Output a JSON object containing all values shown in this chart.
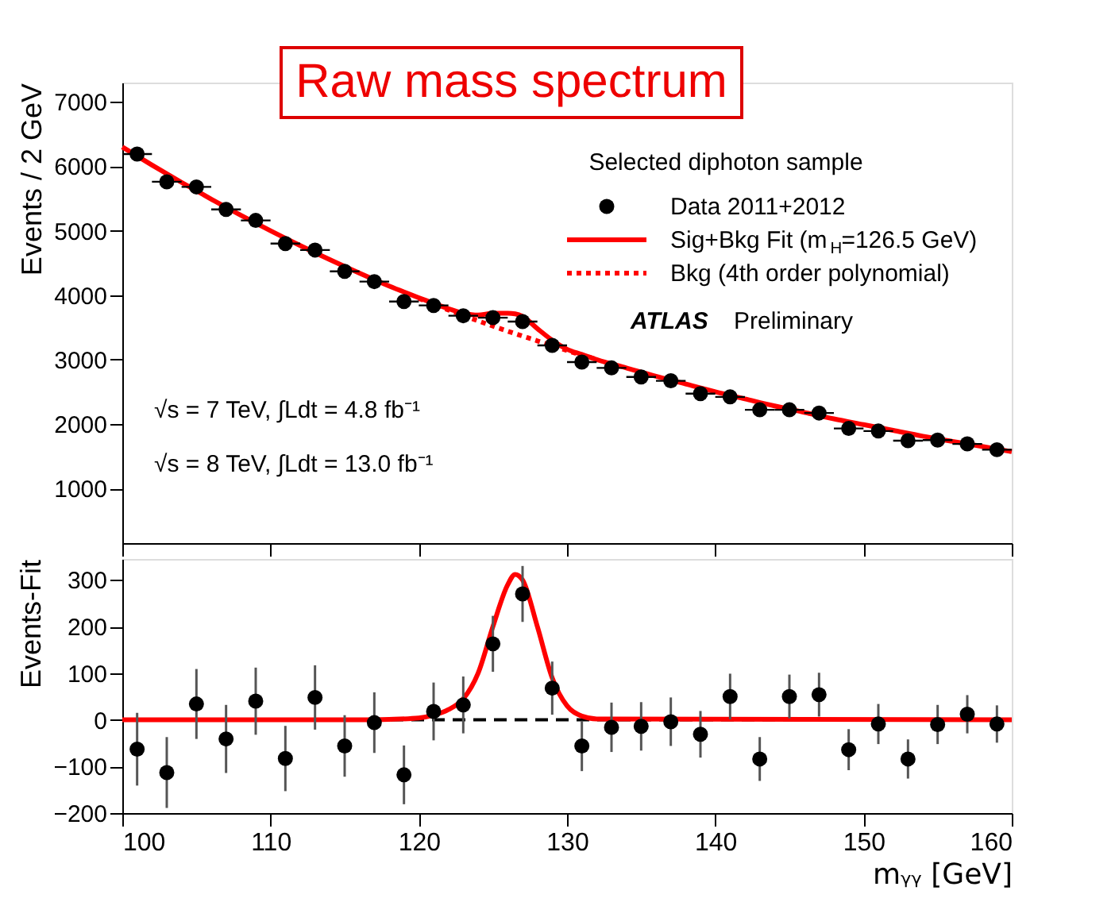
{
  "chart_data": [
    {
      "type": "scatter",
      "title": "Raw mass spectrum",
      "ylabel": "Events / 2 GeV",
      "xlim": [
        100,
        160
      ],
      "xticks": [
        100,
        110,
        120,
        130,
        140,
        150,
        160
      ],
      "ylim": [
        150,
        7300
      ],
      "yticks": [
        1000,
        2000,
        3000,
        4000,
        5000,
        6000,
        7000
      ],
      "tick_labels": "y",
      "legend": "top right",
      "annotations": [
        "Selected diphoton sample",
        "ATLAS",
        "Preliminary",
        "√s = 7 TeV, ∫Ldt = 4.8 fb⁻¹",
        "√s = 8 TeV, ∫Ldt = 13.0 fb⁻¹"
      ],
      "series": [
        {
          "name": "Data 2011+2012",
          "marker": "circle",
          "color": "#000000",
          "x": [
            101,
            103,
            105,
            107,
            109,
            111,
            113,
            115,
            117,
            119,
            121,
            123,
            125,
            127,
            129,
            131,
            133,
            135,
            137,
            139,
            141,
            143,
            145,
            147,
            149,
            151,
            153,
            155,
            157,
            159
          ],
          "values": [
            6190,
            5760,
            5680,
            5330,
            5160,
            4800,
            4700,
            4370,
            4210,
            3900,
            3840,
            3680,
            3650,
            3590,
            3220,
            2960,
            2870,
            2730,
            2670,
            2470,
            2420,
            2220,
            2220,
            2170,
            1930,
            1890,
            1740,
            1750,
            1690,
            1600
          ],
          "xerrors": [
            1,
            1,
            1,
            1,
            1,
            1,
            1,
            1,
            1,
            1,
            1,
            1,
            1,
            1,
            1,
            1,
            1,
            1,
            1,
            1,
            1,
            1,
            1,
            1,
            1,
            1,
            1,
            1,
            1,
            1
          ]
        },
        {
          "name": "Sig+Bkg Fit (m$_{H}$=126.5 GeV)",
          "type": "line",
          "line_style": "solid",
          "color": "#ff0000",
          "x": [
            100,
            102,
            104,
            106,
            108,
            110,
            112,
            114,
            116,
            118,
            120,
            122,
            123,
            124,
            125,
            126,
            126.5,
            127,
            128,
            129,
            130,
            131,
            132,
            134,
            136,
            138,
            140,
            142,
            144,
            146,
            148,
            150,
            152,
            154,
            156,
            158,
            160
          ],
          "values": [
            6300,
            6020,
            5750,
            5490,
            5240,
            5000,
            4770,
            4550,
            4340,
            4140,
            3960,
            3790,
            3720,
            3690,
            3720,
            3720,
            3710,
            3670,
            3480,
            3300,
            3160,
            3080,
            3000,
            2870,
            2740,
            2620,
            2500,
            2390,
            2280,
            2180,
            2080,
            1990,
            1900,
            1810,
            1730,
            1650,
            1570
          ]
        },
        {
          "name": "Bkg (4th order polynomial)",
          "type": "line",
          "line_style": "dotted",
          "color": "#ff0000",
          "x": [
            120,
            122,
            124,
            126,
            128,
            130,
            132
          ],
          "values": [
            3950,
            3770,
            3600,
            3440,
            3290,
            3140,
            3000
          ]
        }
      ]
    },
    {
      "type": "scatter",
      "xlabel": "mᵧᵧ [GeV]",
      "ylabel": "Events-Fit",
      "xlim": [
        100,
        160
      ],
      "xticks": [
        100,
        110,
        120,
        130,
        140,
        150,
        160
      ],
      "ylim": [
        -200,
        345
      ],
      "yticks": [
        -200,
        -100,
        0,
        100,
        200,
        300
      ],
      "ref_lines": [
        {
          "axis": "y",
          "value": 0,
          "color": "#000000",
          "line_style": "dashed"
        }
      ],
      "series": [
        {
          "marker": "circle",
          "color": "#000000",
          "x": [
            101,
            103,
            105,
            107,
            109,
            111,
            113,
            115,
            117,
            119,
            121,
            123,
            125,
            127,
            129,
            131,
            133,
            135,
            137,
            139,
            141,
            143,
            145,
            147,
            149,
            151,
            153,
            155,
            157,
            159
          ],
          "values": [
            -63,
            -113,
            34,
            -41,
            40,
            -83,
            48,
            -56,
            -6,
            -118,
            18,
            32,
            163,
            270,
            68,
            -56,
            -16,
            -14,
            -4,
            -31,
            50,
            -84,
            50,
            54,
            -64,
            -9,
            -84,
            -10,
            12,
            -9
          ],
          "errors": [
            78,
            76,
            75,
            73,
            72,
            70,
            69,
            66,
            65,
            63,
            62,
            61,
            60,
            60,
            57,
            54,
            53,
            52,
            52,
            50,
            49,
            47,
            47,
            47,
            44,
            43,
            42,
            42,
            41,
            40
          ]
        },
        {
          "type": "line",
          "line_style": "solid",
          "color": "#ff0000",
          "x": [
            100,
            116,
            118,
            120,
            121,
            122,
            123,
            124,
            125,
            126,
            126.5,
            127,
            128,
            129,
            130,
            131,
            132,
            160
          ],
          "values": [
            0,
            0,
            1,
            4,
            10,
            22,
            45,
            100,
            200,
            290,
            312,
            300,
            200,
            90,
            30,
            8,
            2,
            0
          ]
        }
      ]
    }
  ]
}
